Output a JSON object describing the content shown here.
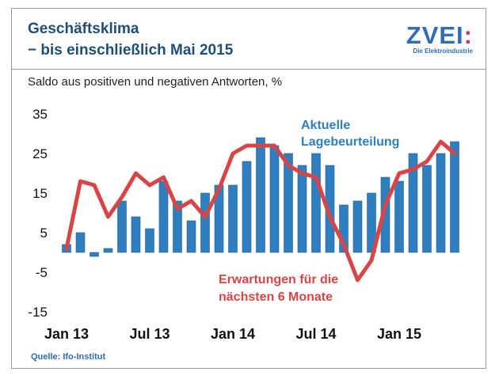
{
  "header": {
    "title_line1": "Geschäftsklima",
    "title_line2": "− bis einschließlich Mai 2015",
    "logo_text": "ZVEI",
    "logo_accent": ":",
    "logo_sub": "Die Elektroindustrie"
  },
  "subtitle": "Saldo aus positiven und negativen Antworten, %",
  "source": "Quelle: Ifo-Institut",
  "colors": {
    "bar": "#2f7fc0",
    "line": "#d94545",
    "title": "#1f4e79",
    "logo": "#2f6eb5",
    "logo_accent": "#c8326e"
  },
  "chart_data": {
    "type": "bar",
    "ylim": [
      -15,
      35
    ],
    "yticks": [
      35,
      25,
      15,
      5,
      -5,
      -15
    ],
    "ytick_labels": [
      "35",
      "25",
      "15",
      "5",
      "-5",
      "-15"
    ],
    "x_labels": [
      "Jan 13",
      "Jul 13",
      "Jan 14",
      "Jul 14",
      "Jan 15"
    ],
    "x_label_indices": [
      0,
      6,
      12,
      18,
      24
    ],
    "grid": false,
    "series": [
      {
        "name": "Aktuelle Lagebeurteilung",
        "type": "bar",
        "values": [
          2,
          5,
          -1,
          1,
          13,
          9,
          6,
          18,
          13,
          8,
          15,
          17,
          17,
          23,
          29,
          27,
          25,
          22,
          25,
          22,
          12,
          13,
          15,
          19,
          18,
          25,
          22,
          25,
          28
        ]
      },
      {
        "name": "Erwartungen für die nächsten 6 Monate",
        "type": "line",
        "values": [
          1,
          18,
          17,
          9,
          14,
          20,
          17,
          19,
          11,
          13,
          9,
          16,
          25,
          27,
          27,
          27,
          22,
          20,
          19,
          9,
          2,
          -7,
          -2,
          12,
          20,
          21,
          23,
          28,
          25
        ]
      }
    ],
    "annotations": {
      "bars_line1": "Aktuelle",
      "bars_line2": "Lagebeurteilung",
      "line_line1": "Erwartungen für die",
      "line_line2": "nächsten 6 Monate"
    }
  }
}
